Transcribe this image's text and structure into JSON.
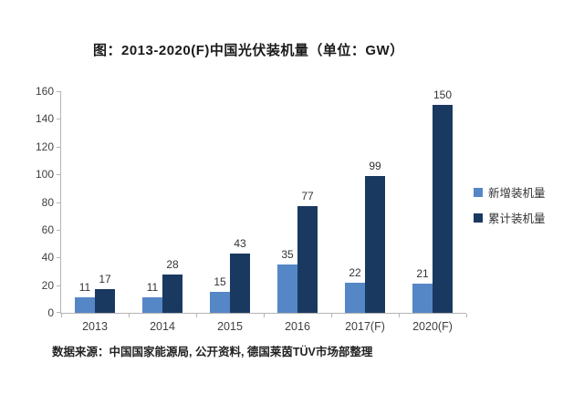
{
  "title": "图：2013-2020(F)中国光伏装机量（单位：GW）",
  "footer": "数据来源：中国国家能源局, 公开资料, 德国莱茵TÜV市场部整理",
  "colors": {
    "new_installed": "#5587c6",
    "cumulative": "#1a3961",
    "axis": "#b4b4b4",
    "label_text": "#333333",
    "title_text": "#1a1a1a"
  },
  "chart_data": {
    "type": "bar",
    "title": "图：2013-2020(F)中国光伏装机量（单位：GW）",
    "categories": [
      "2013",
      "2014",
      "2015",
      "2016",
      "2017(F)",
      "2020(F)"
    ],
    "series": [
      {
        "name": "新增装机量",
        "color": "#5587c6",
        "values": [
          11,
          11,
          15,
          35,
          22,
          21
        ]
      },
      {
        "name": "累计装机量",
        "color": "#1a3961",
        "values": [
          17,
          28,
          43,
          77,
          99,
          150
        ]
      }
    ],
    "xlabel": "",
    "ylabel": "",
    "ylim": [
      0,
      160
    ],
    "ytick_step": 20,
    "grid": false,
    "legend_position": "right",
    "data_labels": true,
    "source_note": "数据来源：中国国家能源局, 公开资料, 德国莱茵TÜV市场部整理"
  }
}
